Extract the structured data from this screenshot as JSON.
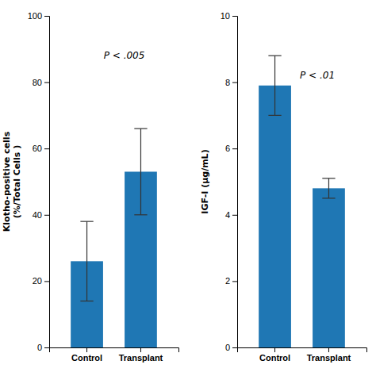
{
  "chart_data": [
    {
      "type": "bar",
      "categories": [
        "Control",
        "Transplant"
      ],
      "values": [
        26,
        53
      ],
      "errors": [
        12,
        13
      ],
      "ylabel": "Klotho-positive cells\n(%/Total Cells )",
      "ylim": [
        0,
        100
      ],
      "yticks": [
        0,
        20,
        40,
        60,
        80,
        100
      ],
      "annotations": [
        "P < .005"
      ],
      "grid": false
    },
    {
      "type": "bar",
      "categories": [
        "Control",
        "Transplant"
      ],
      "values": [
        7.9,
        4.8
      ],
      "errors": [
        0.9,
        0.3
      ],
      "ylabel": "IGF-I (μg/mL)",
      "ylim": [
        0,
        10
      ],
      "yticks": [
        0,
        2,
        4,
        6,
        8,
        10
      ],
      "annotations": [
        "P < .01"
      ],
      "grid": false
    }
  ]
}
